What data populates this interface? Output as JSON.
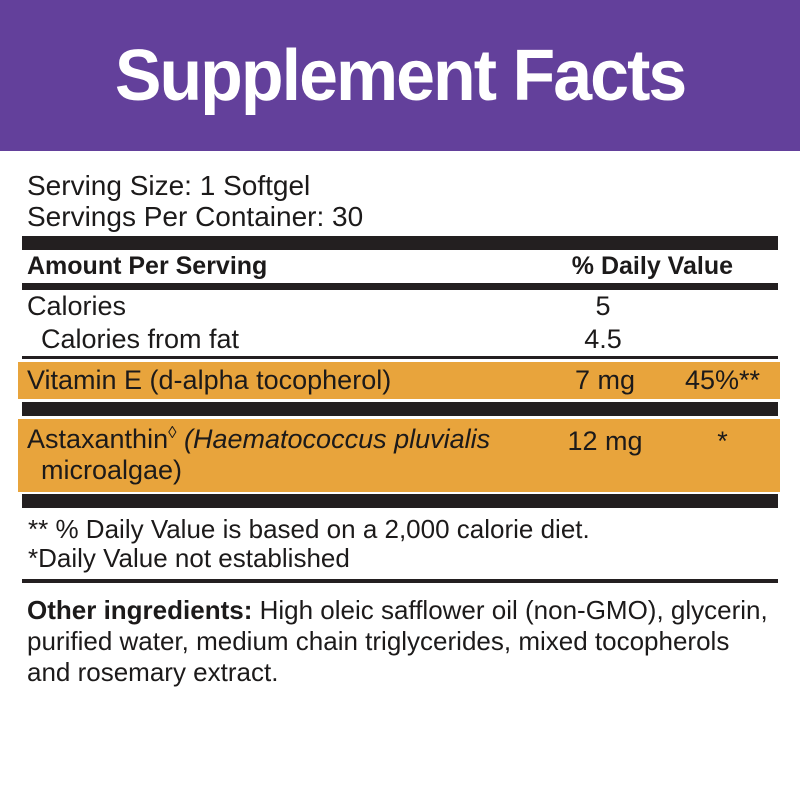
{
  "colors": {
    "banner_purple": "#63409B",
    "highlight_orange": "#E8A43C",
    "bar_black": "#231F20",
    "text": "#1C1A1A"
  },
  "banner": {
    "title": "Supplement Facts"
  },
  "serving": {
    "size": "Serving Size: 1 Softgel",
    "per_container": "Servings Per Container: 30"
  },
  "table": {
    "header": {
      "amount_label": "Amount Per Serving",
      "dv_label": "% Daily Value"
    },
    "rows": [
      {
        "name": "Calories",
        "amount": "5",
        "dv": ""
      },
      {
        "name": "Calories from fat",
        "amount": "4.5",
        "dv": ""
      },
      {
        "name": "Vitamin E (d-alpha tocopherol)",
        "amount": "7 mg",
        "dv": "45%**",
        "highlight": true
      },
      {
        "name": "Astaxanthin",
        "marker": "◊",
        "name_italic": " (Haematococcus pluvialis",
        "name_line2": "microalgae)",
        "amount": "12 mg",
        "dv": "*",
        "highlight": true
      }
    ]
  },
  "footnotes": {
    "line1": "** % Daily Value is based on a 2,000 calorie diet.",
    "line2": "*Daily Value not established"
  },
  "other_ingredients": {
    "label": "Other ingredients:",
    "text": " High oleic safflower oil (non-GMO), glycerin, purified water, medium chain triglycerides, mixed tocopherols and rosemary extract."
  }
}
